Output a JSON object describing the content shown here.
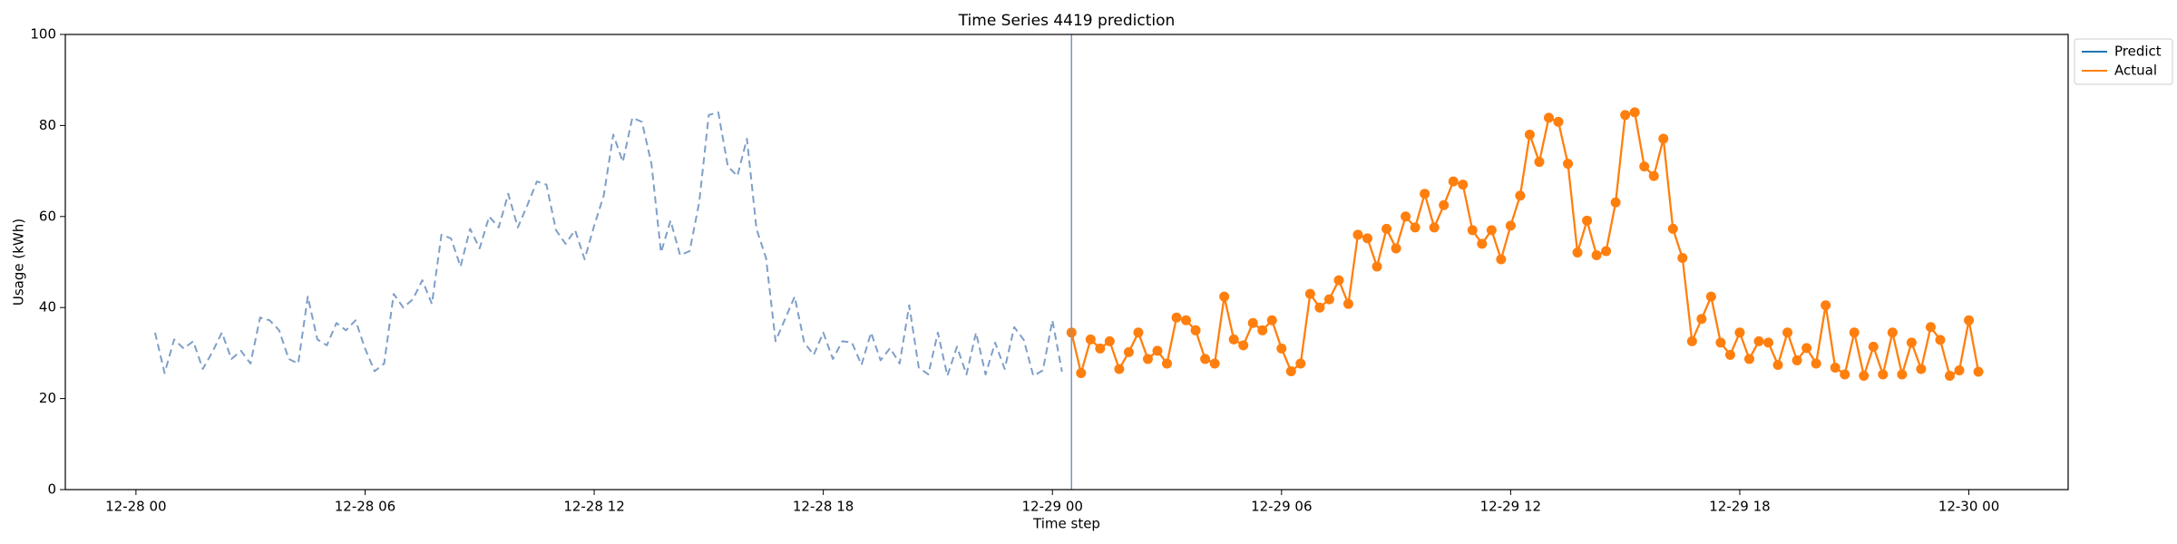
{
  "chart_data": {
    "type": "line",
    "title": "Time Series 4419 prediction",
    "xlabel": "Time step",
    "ylabel": "Usage (kWh)",
    "xlim": [
      "12-27 22:09",
      "12-30 02:36"
    ],
    "ylim": [
      0,
      100
    ],
    "xticks": [
      "12-28 00",
      "12-28 06",
      "12-28 12",
      "12-28 18",
      "12-29 00",
      "12-29 06",
      "12-29 12",
      "12-29 18",
      "12-30 00"
    ],
    "yticks": [
      0,
      20,
      40,
      60,
      80,
      100
    ],
    "grid": false,
    "legend": "upper right outside",
    "vline": {
      "x": "12-29 00:30",
      "color": "#7b96c8"
    },
    "series": [
      {
        "color": "#7f9fc8",
        "linestyle": "dashed",
        "x": [
          "12-28 00:30",
          "12-28 00:45",
          "12-28 01:00",
          "12-28 01:15",
          "12-28 01:30",
          "12-28 01:45",
          "12-28 02:00",
          "12-28 02:15",
          "12-28 02:30",
          "12-28 02:45",
          "12-28 03:00",
          "12-28 03:15",
          "12-28 03:30",
          "12-28 03:45",
          "12-28 04:00",
          "12-28 04:15",
          "12-28 04:30",
          "12-28 04:45",
          "12-28 05:00",
          "12-28 05:15",
          "12-28 05:30",
          "12-28 05:45",
          "12-28 06:00",
          "12-28 06:15",
          "12-28 06:30",
          "12-28 06:45",
          "12-28 07:00",
          "12-28 07:15",
          "12-28 07:30",
          "12-28 07:45",
          "12-28 08:00",
          "12-28 08:15",
          "12-28 08:30",
          "12-28 08:45",
          "12-28 09:00",
          "12-28 09:15",
          "12-28 09:30",
          "12-28 09:45",
          "12-28 10:00",
          "12-28 10:15",
          "12-28 10:30",
          "12-28 10:45",
          "12-28 11:00",
          "12-28 11:15",
          "12-28 11:30",
          "12-28 11:45",
          "12-28 12:00",
          "12-28 12:15",
          "12-28 12:30",
          "12-28 12:45",
          "12-28 13:00",
          "12-28 13:15",
          "12-28 13:30",
          "12-28 13:45",
          "12-28 14:00",
          "12-28 14:15",
          "12-28 14:30",
          "12-28 14:45",
          "12-28 15:00",
          "12-28 15:15",
          "12-28 15:30",
          "12-28 15:45",
          "12-28 16:00",
          "12-28 16:15",
          "12-28 16:30",
          "12-28 16:45",
          "12-28 17:00",
          "12-28 17:15",
          "12-28 17:30",
          "12-28 17:45",
          "12-28 18:00",
          "12-28 18:15",
          "12-28 18:30",
          "12-28 18:45",
          "12-28 19:00",
          "12-28 19:15",
          "12-28 19:30",
          "12-28 19:45",
          "12-28 20:00",
          "12-28 20:15",
          "12-28 20:30",
          "12-28 20:45",
          "12-28 21:00",
          "12-28 21:15",
          "12-28 21:30",
          "12-28 21:45",
          "12-28 22:00",
          "12-28 22:15",
          "12-28 22:30",
          "12-28 22:45",
          "12-28 23:00",
          "12-28 23:15",
          "12-28 23:30",
          "12-28 23:45",
          "12-29 00:00",
          "12-29 00:15"
        ],
        "values": [
          34.5,
          25.6,
          33,
          31,
          32.6,
          26.5,
          30.2,
          34.5,
          28.7,
          30.5,
          27.7,
          37.8,
          37.2,
          35,
          28.7,
          27.7,
          42.4,
          33,
          31.7,
          36.6,
          35,
          37.2,
          31,
          26,
          27.7,
          43,
          40,
          41.8,
          46,
          40.8,
          56,
          55.2,
          49,
          57.3,
          53,
          60,
          57.6,
          65,
          57.6,
          62.5,
          67.7,
          67,
          57,
          54,
          57,
          50.6,
          58,
          64.6,
          78,
          72,
          81.7,
          80.8,
          71.6,
          52.1,
          59.1,
          51.5,
          52.4,
          63.1,
          82.3,
          82.9,
          71,
          68.9,
          77.1,
          57.3,
          50.9,
          32.6,
          37.5,
          42.4,
          32.3,
          29.6,
          34.5,
          28.7,
          32.6,
          32.3,
          27.4,
          34.5,
          28.4,
          31.1,
          27.7,
          40.5,
          26.8,
          25.3,
          34.5,
          25,
          31.4,
          25.3,
          34.5,
          25.3,
          32.3,
          26.5,
          35.7,
          32.9,
          25,
          26.2,
          37.2,
          25.9
        ]
      },
      {
        "name": "Predict",
        "color": "#1f77b4"
      },
      {
        "name": "Actual",
        "color": "#ff7f0e",
        "marker": "o",
        "x": [
          "12-29 00:30",
          "12-29 00:45",
          "12-29 01:00",
          "12-29 01:15",
          "12-29 01:30",
          "12-29 01:45",
          "12-29 02:00",
          "12-29 02:15",
          "12-29 02:30",
          "12-29 02:45",
          "12-29 03:00",
          "12-29 03:15",
          "12-29 03:30",
          "12-29 03:45",
          "12-29 04:00",
          "12-29 04:15",
          "12-29 04:30",
          "12-29 04:45",
          "12-29 05:00",
          "12-29 05:15",
          "12-29 05:30",
          "12-29 05:45",
          "12-29 06:00",
          "12-29 06:15",
          "12-29 06:30",
          "12-29 06:45",
          "12-29 07:00",
          "12-29 07:15",
          "12-29 07:30",
          "12-29 07:45",
          "12-29 08:00",
          "12-29 08:15",
          "12-29 08:30",
          "12-29 08:45",
          "12-29 09:00",
          "12-29 09:15",
          "12-29 09:30",
          "12-29 09:45",
          "12-29 10:00",
          "12-29 10:15",
          "12-29 10:30",
          "12-29 10:45",
          "12-29 11:00",
          "12-29 11:15",
          "12-29 11:30",
          "12-29 11:45",
          "12-29 12:00",
          "12-29 12:15",
          "12-29 12:30",
          "12-29 12:45",
          "12-29 13:00",
          "12-29 13:15",
          "12-29 13:30",
          "12-29 13:45",
          "12-29 14:00",
          "12-29 14:15",
          "12-29 14:30",
          "12-29 14:45",
          "12-29 15:00",
          "12-29 15:15",
          "12-29 15:30",
          "12-29 15:45",
          "12-29 16:00",
          "12-29 16:15",
          "12-29 16:30",
          "12-29 16:45",
          "12-29 17:00",
          "12-29 17:15",
          "12-29 17:30",
          "12-29 17:45",
          "12-29 18:00",
          "12-29 18:15",
          "12-29 18:30",
          "12-29 18:45",
          "12-29 19:00",
          "12-29 19:15",
          "12-29 19:30",
          "12-29 19:45",
          "12-29 20:00",
          "12-29 20:15",
          "12-29 20:30",
          "12-29 20:45",
          "12-29 21:00",
          "12-29 21:15",
          "12-29 21:30",
          "12-29 21:45",
          "12-29 22:00",
          "12-29 22:15",
          "12-29 22:30",
          "12-29 22:45",
          "12-29 23:00",
          "12-29 23:15",
          "12-29 23:30",
          "12-29 23:45",
          "12-30 00:00",
          "12-30 00:15"
        ],
        "values": [
          34.5,
          25.6,
          33,
          31,
          32.6,
          26.5,
          30.2,
          34.5,
          28.7,
          30.5,
          27.7,
          37.8,
          37.2,
          35,
          28.7,
          27.7,
          42.4,
          33,
          31.7,
          36.6,
          35,
          37.2,
          31,
          26,
          27.7,
          43,
          40,
          41.8,
          46,
          40.8,
          56,
          55.2,
          49,
          57.3,
          53,
          60,
          57.6,
          65,
          57.6,
          62.5,
          67.7,
          67,
          57,
          54,
          57,
          50.6,
          58,
          64.6,
          78,
          72,
          81.7,
          80.8,
          71.6,
          52.1,
          59.1,
          51.5,
          52.4,
          63.1,
          82.3,
          82.9,
          71,
          68.9,
          77.1,
          57.3,
          50.9,
          32.6,
          37.5,
          42.4,
          32.3,
          29.6,
          34.5,
          28.7,
          32.6,
          32.3,
          27.4,
          34.5,
          28.4,
          31.1,
          27.7,
          40.5,
          26.8,
          25.3,
          34.5,
          25,
          31.4,
          25.3,
          34.5,
          25.3,
          32.3,
          26.5,
          35.7,
          32.9,
          25,
          26.2,
          37.2,
          25.9
        ]
      }
    ]
  }
}
